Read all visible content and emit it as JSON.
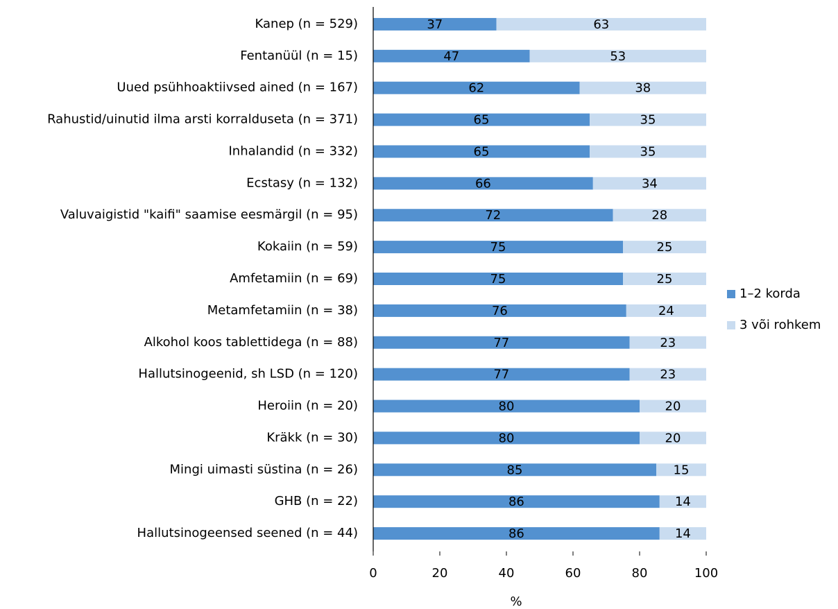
{
  "chart_data": {
    "type": "bar",
    "orientation": "horizontal",
    "stacked": true,
    "categories": [
      "Kanep (n = 529)",
      "Fentanüül (n = 15)",
      "Uued psühhoaktiivsed ained (n = 167)",
      "Rahustid/uinutid ilma arsti korralduseta (n = 371)",
      "Inhalandid (n = 332)",
      "Ecstasy (n = 132)",
      "Valuvaigistid \"kaifi\" saamise eesmärgil (n = 95)",
      "Kokaiin (n = 59)",
      "Amfetamiin (n = 69)",
      "Metamfetamiin (n = 38)",
      "Alkohol koos tablettidega (n = 88)",
      "Hallutsinogeenid, sh LSD (n = 120)",
      "Heroiin (n = 20)",
      "Kräkk (n = 30)",
      "Mingi uimasti süstina (n = 26)",
      "GHB (n = 22)",
      "Hallutsinogeensed seened (n = 44)"
    ],
    "series": [
      {
        "name": "1–2 korda",
        "color": "#5391d0",
        "values": [
          37,
          47,
          62,
          65,
          65,
          66,
          72,
          75,
          75,
          76,
          77,
          77,
          80,
          80,
          85,
          86,
          86
        ]
      },
      {
        "name": "3 või rohkem",
        "color": "#c9dcf0",
        "values": [
          63,
          53,
          38,
          35,
          35,
          34,
          28,
          25,
          25,
          24,
          23,
          23,
          20,
          20,
          15,
          14,
          14
        ]
      }
    ],
    "xlabel": "%",
    "xlim": [
      0,
      100
    ],
    "xticks": [
      0,
      20,
      40,
      60,
      80,
      100
    ],
    "legend": "right"
  }
}
